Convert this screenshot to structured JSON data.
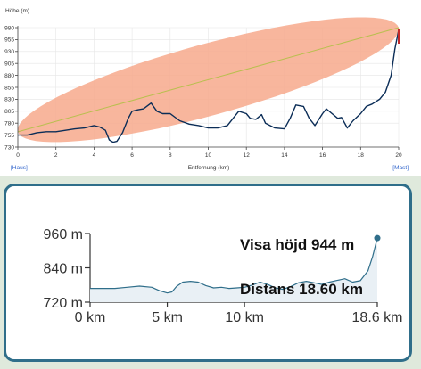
{
  "top_chart": {
    "y_title": "Höhe (m)",
    "x_title": "Entfernung (km)",
    "left_tag": "[Haus]",
    "right_tag": "[Mast]",
    "ellipse_color": "#f7a98c",
    "line_color": "#0b2d57",
    "sightline_color": "#b9bf4f",
    "end_marker_color": "#c0292b",
    "x_ticks": [
      0,
      2,
      4,
      6,
      8,
      10,
      12,
      14,
      16,
      18,
      20
    ],
    "y_ticks": [
      730,
      755,
      780,
      805,
      830,
      855,
      880,
      905,
      930,
      955,
      980
    ]
  },
  "bottom_chart": {
    "y_tick_labels": [
      "960 m",
      "840 m",
      "720 m"
    ],
    "x_tick_labels": [
      "0 km",
      "5 km",
      "10 km",
      "18.6 km"
    ],
    "height_label": "Visa höjd 944 m",
    "distance_label": "Distans 18.60 km",
    "line_color": "#2f6e8a",
    "fill_color": "#e9f0f5"
  },
  "chart_data": [
    {
      "type": "area",
      "xlabel": "Entfernung (km)",
      "ylabel": "Höhe (m)",
      "xlim": [
        0,
        20
      ],
      "ylim": [
        730,
        980
      ],
      "grid": true,
      "sightline": {
        "from": [
          0,
          762
        ],
        "to": [
          20,
          980
        ]
      },
      "series": [
        {
          "x": [
            0,
            0.5,
            1,
            1.5,
            2,
            2.5,
            3,
            3.5,
            4,
            4.3,
            4.6,
            4.8,
            5,
            5.2,
            5.5,
            5.8,
            6,
            6.3,
            6.6,
            7,
            7.3,
            7.6,
            8,
            8.5,
            9,
            9.5,
            10,
            10.5,
            11,
            11.3,
            11.6,
            12,
            12.2,
            12.5,
            12.8,
            13,
            13.5,
            14,
            14.3,
            14.6,
            15,
            15.3,
            15.6,
            16,
            16.2,
            16.5,
            16.8,
            17,
            17.3,
            17.6,
            18,
            18.3,
            18.6,
            19,
            19.3,
            19.6,
            19.8,
            20
          ],
          "y": [
            755,
            755,
            760,
            762,
            762,
            765,
            768,
            770,
            775,
            772,
            765,
            745,
            740,
            742,
            760,
            790,
            805,
            808,
            810,
            822,
            805,
            800,
            800,
            785,
            778,
            775,
            770,
            770,
            775,
            790,
            805,
            800,
            790,
            788,
            798,
            780,
            770,
            768,
            790,
            818,
            815,
            790,
            775,
            800,
            810,
            800,
            790,
            792,
            770,
            785,
            800,
            815,
            820,
            830,
            845,
            880,
            935,
            975
          ]
        }
      ]
    },
    {
      "type": "area",
      "x_tick_labels": [
        "0 km",
        "5 km",
        "10 km",
        "18.6 km"
      ],
      "ylim": [
        720,
        960
      ],
      "series": [
        {
          "x": [
            0,
            0.8,
            1.6,
            2.4,
            3.2,
            4,
            4.5,
            5,
            5.3,
            5.6,
            6,
            6.5,
            7,
            7.5,
            8,
            8.5,
            9,
            9.5,
            10,
            10.5,
            11,
            11.5,
            12,
            12.5,
            13,
            13.5,
            14,
            14.5,
            15,
            15.5,
            16,
            16.5,
            17,
            17.5,
            18,
            18.3,
            18.6
          ],
          "y": [
            768,
            768,
            768,
            772,
            776,
            772,
            760,
            752,
            756,
            775,
            790,
            793,
            790,
            778,
            770,
            772,
            768,
            770,
            772,
            780,
            790,
            782,
            770,
            765,
            775,
            788,
            793,
            788,
            782,
            790,
            796,
            802,
            790,
            795,
            830,
            880,
            944
          ]
        }
      ]
    }
  ]
}
